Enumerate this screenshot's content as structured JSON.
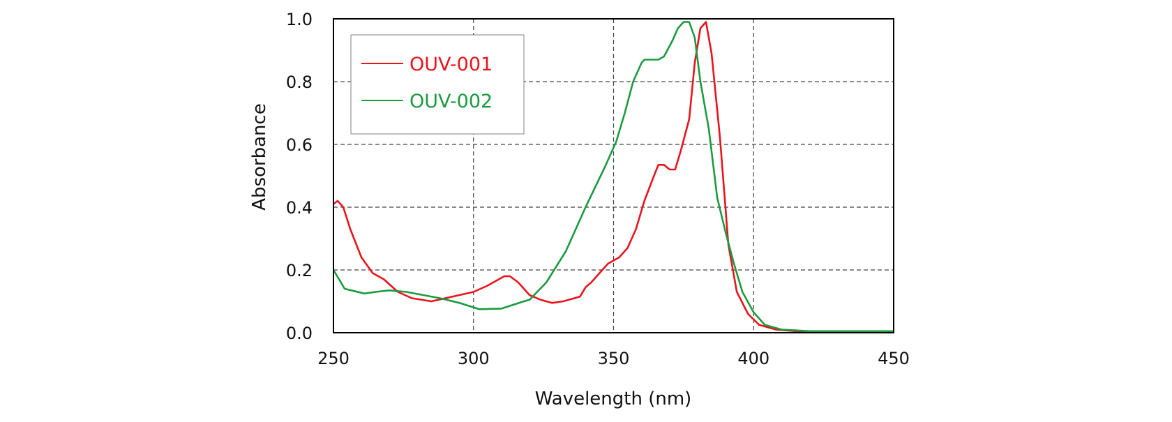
{
  "chart_data": {
    "type": "line",
    "title": "",
    "xlabel": "Wavelength (nm)",
    "ylabel": "Absorbance",
    "xlim": [
      250,
      450
    ],
    "ylim": [
      0,
      1.0
    ],
    "x_ticks": [
      "250",
      "300",
      "350",
      "400",
      "450"
    ],
    "y_ticks": [
      "0.0",
      "0.2",
      "0.4",
      "0.6",
      "0.8",
      "1.0"
    ],
    "grid": "dashed",
    "legend_position": "top-left",
    "series": [
      {
        "name": "OUV-001",
        "color": "#e8141c",
        "points": [
          [
            250,
            0.41
          ],
          [
            251.5,
            0.42
          ],
          [
            253.5,
            0.4
          ],
          [
            256,
            0.33
          ],
          [
            260,
            0.24
          ],
          [
            264,
            0.19
          ],
          [
            266,
            0.18
          ],
          [
            268,
            0.17
          ],
          [
            273,
            0.13
          ],
          [
            278,
            0.11
          ],
          [
            285,
            0.1
          ],
          [
            290,
            0.11
          ],
          [
            295,
            0.12
          ],
          [
            300,
            0.13
          ],
          [
            305,
            0.15
          ],
          [
            311,
            0.18
          ],
          [
            313,
            0.18
          ],
          [
            316,
            0.16
          ],
          [
            320,
            0.12
          ],
          [
            324,
            0.105
          ],
          [
            328,
            0.095
          ],
          [
            332,
            0.1
          ],
          [
            338,
            0.115
          ],
          [
            340,
            0.145
          ],
          [
            342,
            0.16
          ],
          [
            345,
            0.19
          ],
          [
            348,
            0.22
          ],
          [
            352,
            0.24
          ],
          [
            355,
            0.27
          ],
          [
            358,
            0.33
          ],
          [
            361,
            0.42
          ],
          [
            364,
            0.49
          ],
          [
            366,
            0.535
          ],
          [
            368,
            0.535
          ],
          [
            370,
            0.52
          ],
          [
            372,
            0.52
          ],
          [
            374,
            0.58
          ],
          [
            377,
            0.68
          ],
          [
            379,
            0.86
          ],
          [
            381,
            0.97
          ],
          [
            383,
            0.99
          ],
          [
            385,
            0.89
          ],
          [
            388,
            0.62
          ],
          [
            391,
            0.28
          ],
          [
            394,
            0.13
          ],
          [
            398,
            0.06
          ],
          [
            402,
            0.025
          ],
          [
            408,
            0.01
          ],
          [
            415,
            0.005
          ],
          [
            420,
            0.005
          ],
          [
            450,
            0.005
          ]
        ]
      },
      {
        "name": "OUV-002",
        "color": "#1b9a3e",
        "points": [
          [
            250,
            0.2
          ],
          [
            254,
            0.14
          ],
          [
            261,
            0.125
          ],
          [
            265,
            0.13
          ],
          [
            270,
            0.135
          ],
          [
            276,
            0.13
          ],
          [
            282,
            0.12
          ],
          [
            288,
            0.11
          ],
          [
            295,
            0.095
          ],
          [
            302,
            0.075
          ],
          [
            310,
            0.077
          ],
          [
            318,
            0.1
          ],
          [
            320,
            0.105
          ],
          [
            326,
            0.16
          ],
          [
            333,
            0.26
          ],
          [
            340,
            0.4
          ],
          [
            347,
            0.53
          ],
          [
            351,
            0.61
          ],
          [
            354,
            0.7
          ],
          [
            357,
            0.8
          ],
          [
            360,
            0.86
          ],
          [
            361,
            0.87
          ],
          [
            366,
            0.87
          ],
          [
            368,
            0.88
          ],
          [
            371,
            0.93
          ],
          [
            373,
            0.97
          ],
          [
            375,
            0.99
          ],
          [
            377,
            0.99
          ],
          [
            379,
            0.94
          ],
          [
            381,
            0.8
          ],
          [
            384,
            0.65
          ],
          [
            387,
            0.43
          ],
          [
            390,
            0.32
          ],
          [
            393,
            0.22
          ],
          [
            396,
            0.13
          ],
          [
            400,
            0.065
          ],
          [
            404,
            0.025
          ],
          [
            410,
            0.01
          ],
          [
            420,
            0.005
          ],
          [
            450,
            0.005
          ]
        ]
      }
    ]
  }
}
